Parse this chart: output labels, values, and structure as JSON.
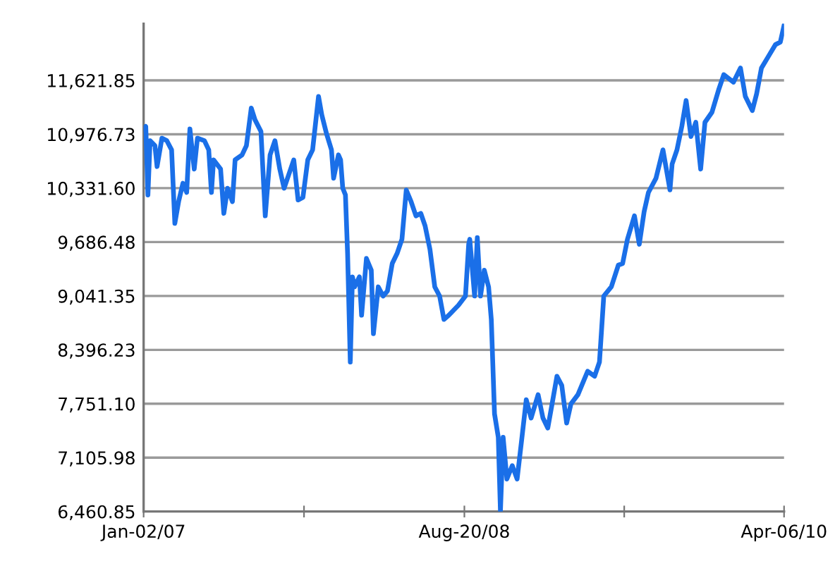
{
  "chart_data": {
    "type": "line",
    "x": [
      "2007-01-02",
      "2007-01-06",
      "2007-01-10",
      "2007-01-14",
      "2007-01-23",
      "2007-01-27",
      "2007-02-05",
      "2007-02-14",
      "2007-02-23",
      "2007-03-01",
      "2007-03-08",
      "2007-03-16",
      "2007-03-23",
      "2007-03-29",
      "2007-04-06",
      "2007-04-12",
      "2007-04-25",
      "2007-05-03",
      "2007-05-08",
      "2007-05-12",
      "2007-05-25",
      "2007-05-31",
      "2007-06-07",
      "2007-06-16",
      "2007-06-21",
      "2007-07-04",
      "2007-07-12",
      "2007-07-21",
      "2007-07-28",
      "2007-08-08",
      "2007-08-16",
      "2007-08-25",
      "2007-09-03",
      "2007-09-12",
      "2007-09-20",
      "2007-09-29",
      "2007-10-08",
      "2007-10-16",
      "2007-10-25",
      "2007-11-03",
      "2007-11-12",
      "2007-11-23",
      "2007-11-29",
      "2007-12-08",
      "2007-12-17",
      "2007-12-21",
      "2007-12-30",
      "2008-01-03",
      "2008-01-07",
      "2008-01-12",
      "2008-01-16",
      "2008-01-21",
      "2008-01-25",
      "2008-01-29",
      "2008-02-07",
      "2008-02-11",
      "2008-02-20",
      "2008-02-29",
      "2008-03-04",
      "2008-03-13",
      "2008-03-22",
      "2008-03-30",
      "2008-04-08",
      "2008-04-17",
      "2008-04-26",
      "2008-05-04",
      "2008-05-13",
      "2008-05-22",
      "2008-05-31",
      "2008-06-08",
      "2008-06-17",
      "2008-06-26",
      "2008-07-05",
      "2008-07-13",
      "2008-07-22",
      "2008-08-09",
      "2008-08-22",
      "2008-08-28",
      "2008-08-30",
      "2008-09-08",
      "2008-09-13",
      "2008-09-19",
      "2008-09-26",
      "2008-10-04",
      "2008-10-09",
      "2008-10-15",
      "2008-10-22",
      "2008-10-26",
      "2008-10-31",
      "2008-11-07",
      "2008-11-17",
      "2008-11-26",
      "2008-12-05",
      "2008-12-13",
      "2008-12-22",
      "2009-01-04",
      "2009-01-13",
      "2009-01-22",
      "2009-01-30",
      "2009-02-08",
      "2009-02-17",
      "2009-02-26",
      "2009-03-06",
      "2009-03-19",
      "2009-04-06",
      "2009-04-19",
      "2009-04-28",
      "2009-05-06",
      "2009-05-20",
      "2009-06-02",
      "2009-06-10",
      "2009-06-19",
      "2009-07-02",
      "2009-07-11",
      "2009-07-20",
      "2009-07-28",
      "2009-08-11",
      "2009-08-24",
      "2009-09-06",
      "2009-09-10",
      "2009-09-19",
      "2009-09-28",
      "2009-10-06",
      "2009-10-15",
      "2009-10-24",
      "2009-11-02",
      "2009-11-10",
      "2009-11-23",
      "2009-12-06",
      "2009-12-15",
      "2010-01-02",
      "2010-01-15",
      "2010-01-24",
      "2010-02-06",
      "2010-02-14",
      "2010-02-23",
      "2010-03-08",
      "2010-03-21",
      "2010-03-30",
      "2010-04-06"
    ],
    "series": [
      {
        "color": "#1a6fe8",
        "values": [
          11040,
          11070,
          10250,
          10900,
          10840,
          10590,
          10930,
          10900,
          10790,
          9910,
          10170,
          10390,
          10280,
          11040,
          10560,
          10930,
          10900,
          10790,
          10280,
          10670,
          10560,
          10030,
          10330,
          10170,
          10670,
          10730,
          10840,
          11290,
          11150,
          11010,
          10000,
          10730,
          10900,
          10560,
          10330,
          10500,
          10670,
          10190,
          10220,
          10670,
          10790,
          11430,
          11210,
          10980,
          10790,
          10450,
          10730,
          10670,
          10330,
          10250,
          9550,
          8250,
          9270,
          9150,
          9270,
          8810,
          9490,
          9350,
          8590,
          9150,
          9040,
          9100,
          9430,
          9550,
          9720,
          10310,
          10170,
          10000,
          10030,
          9880,
          9600,
          9150,
          9040,
          8760,
          8810,
          8930,
          9040,
          9660,
          9720,
          9040,
          9740,
          9040,
          9350,
          9150,
          8760,
          7630,
          7350,
          6461,
          7350,
          6850,
          7010,
          6850,
          7350,
          7800,
          7580,
          7860,
          7580,
          7460,
          7750,
          8080,
          7970,
          7520,
          7750,
          7860,
          8140,
          8080,
          8250,
          9040,
          9150,
          9410,
          9430,
          9720,
          10000,
          9660,
          10050,
          10280,
          10450,
          10790,
          10310,
          10620,
          10790,
          11070,
          11380,
          10950,
          11120,
          10560,
          11120,
          11240,
          11520,
          11690,
          11600,
          11770,
          11430,
          11260,
          11460,
          11770,
          11910,
          12050,
          12080,
          12280
        ]
      }
    ],
    "ylim": [
      6460.85,
      12300
    ],
    "yticks": [
      {
        "value": 6460.85,
        "label": "6,460.85"
      },
      {
        "value": 7105.98,
        "label": "7,105.98"
      },
      {
        "value": 7751.1,
        "label": "7,751.10"
      },
      {
        "value": 8396.23,
        "label": "8,396.23"
      },
      {
        "value": 9041.35,
        "label": "9,041.35"
      },
      {
        "value": 9686.48,
        "label": "9,686.48"
      },
      {
        "value": 10331.6,
        "label": "10,331.60"
      },
      {
        "value": 10976.73,
        "label": "10,976.73"
      },
      {
        "value": 11621.85,
        "label": "11,621.85"
      }
    ],
    "xlim": [
      "2007-01-02",
      "2010-04-06"
    ],
    "xticks": [
      {
        "value": "2007-01-02",
        "label": "Jan-02/07"
      },
      {
        "value": "2007-10-27",
        "label": null
      },
      {
        "value": "2008-08-20",
        "label": "Aug-20/08"
      },
      {
        "value": "2009-06-13",
        "label": null
      },
      {
        "value": "2010-04-06",
        "label": "Apr-06/10"
      }
    ],
    "grid": "y",
    "marker": "none",
    "line_style": "solid"
  }
}
